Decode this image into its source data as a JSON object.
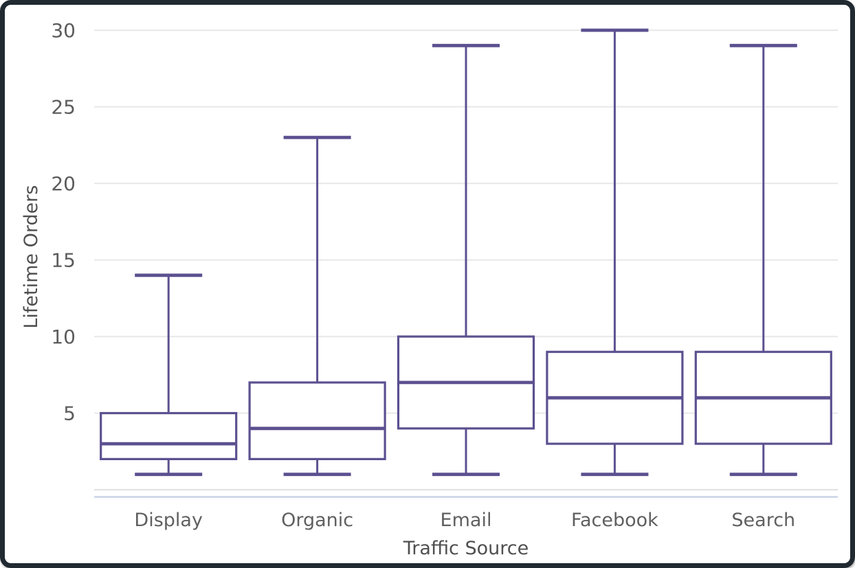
{
  "chart_data": {
    "type": "box",
    "title": "",
    "xlabel": "Traffic Source",
    "ylabel": "Lifetime Orders",
    "categories": [
      "Display",
      "Organic",
      "Email",
      "Facebook",
      "Search"
    ],
    "series": [
      {
        "name": "Display",
        "min": 1,
        "q1": 2,
        "median": 3,
        "q3": 5,
        "max": 14
      },
      {
        "name": "Organic",
        "min": 1,
        "q1": 2,
        "median": 4,
        "q3": 7,
        "max": 23
      },
      {
        "name": "Email",
        "min": 1,
        "q1": 4,
        "median": 7,
        "q3": 10,
        "max": 29
      },
      {
        "name": "Facebook",
        "min": 1,
        "q1": 3,
        "median": 6,
        "q3": 9,
        "max": 30
      },
      {
        "name": "Search",
        "min": 1,
        "q1": 3,
        "median": 6,
        "q3": 9,
        "max": 29
      }
    ],
    "yticks": [
      5,
      10,
      15,
      20,
      25,
      30
    ],
    "ylim": [
      0,
      31
    ],
    "grid": true,
    "orientation": "vertical",
    "legend": "none"
  },
  "colors": {
    "box_stroke": "#5c5090",
    "box_fill": "#ffffff",
    "gridline": "#eaeaea",
    "zero_line": "#e2e2e2",
    "axis_accent_line": "#c9d4e6",
    "tick_text": "#5c5c5c",
    "category_text": "#606060",
    "axis_title_text": "#4f4f4f",
    "frame_border": "#212931",
    "background": "#ffffff"
  }
}
